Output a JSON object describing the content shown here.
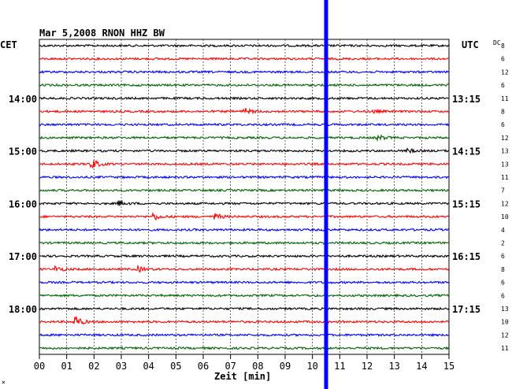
{
  "chart_data": {
    "type": "line",
    "title": "Mar 5,2008   RNON HHZ BW",
    "left_zone_label": "CET",
    "right_zone_label": "UTC",
    "dc_label": "DC",
    "xlabel": "Zeit [min]",
    "xlim": [
      0,
      15
    ],
    "x_ticks": [
      "00",
      "01",
      "02",
      "03",
      "04",
      "05",
      "06",
      "07",
      "08",
      "09",
      "10",
      "11",
      "12",
      "13",
      "14",
      "15"
    ],
    "trace_count": 24,
    "trace_colors": [
      "#000000",
      "#ff0000",
      "#0000ff",
      "#006400"
    ],
    "left_hour_labels": [
      {
        "trace": 4,
        "label": "14:00"
      },
      {
        "trace": 8,
        "label": "15:00"
      },
      {
        "trace": 12,
        "label": "16:00"
      },
      {
        "trace": 16,
        "label": "17:00"
      },
      {
        "trace": 20,
        "label": "18:00"
      }
    ],
    "right_hour_labels": [
      {
        "trace": 4,
        "label": "13:15"
      },
      {
        "trace": 8,
        "label": "14:15"
      },
      {
        "trace": 12,
        "label": "15:15"
      },
      {
        "trace": 16,
        "label": "16:15"
      },
      {
        "trace": 20,
        "label": "17:15"
      }
    ],
    "dc_offsets": [
      "8",
      "6",
      "12",
      "6",
      "11",
      "8",
      "6",
      "12",
      "13",
      "13",
      "11",
      "7",
      "12",
      "10",
      "4",
      "2",
      "6",
      "8",
      "6",
      "6",
      "13",
      "10",
      "12",
      "11"
    ],
    "events": [
      {
        "trace": 5,
        "minute": 7.5,
        "amplitude": 1.6
      },
      {
        "trace": 5,
        "minute": 12.2,
        "amplitude": 0.8
      },
      {
        "trace": 7,
        "minute": 12.4,
        "amplitude": 1.3
      },
      {
        "trace": 8,
        "minute": 13.5,
        "amplitude": 0.9
      },
      {
        "trace": 9,
        "minute": 1.9,
        "amplitude": 2.8
      },
      {
        "trace": 12,
        "minute": 2.9,
        "amplitude": 1.2
      },
      {
        "trace": 13,
        "minute": 4.2,
        "amplitude": 1.6
      },
      {
        "trace": 13,
        "minute": 6.4,
        "amplitude": 1.8
      },
      {
        "trace": 17,
        "minute": 0.6,
        "amplitude": 1.5
      },
      {
        "trace": 17,
        "minute": 3.6,
        "amplitude": 1.4
      },
      {
        "trace": 21,
        "minute": 1.3,
        "amplitude": 3.2
      }
    ],
    "marker": {
      "minute": 10.5,
      "color": "#0000ff"
    },
    "grid": true
  }
}
